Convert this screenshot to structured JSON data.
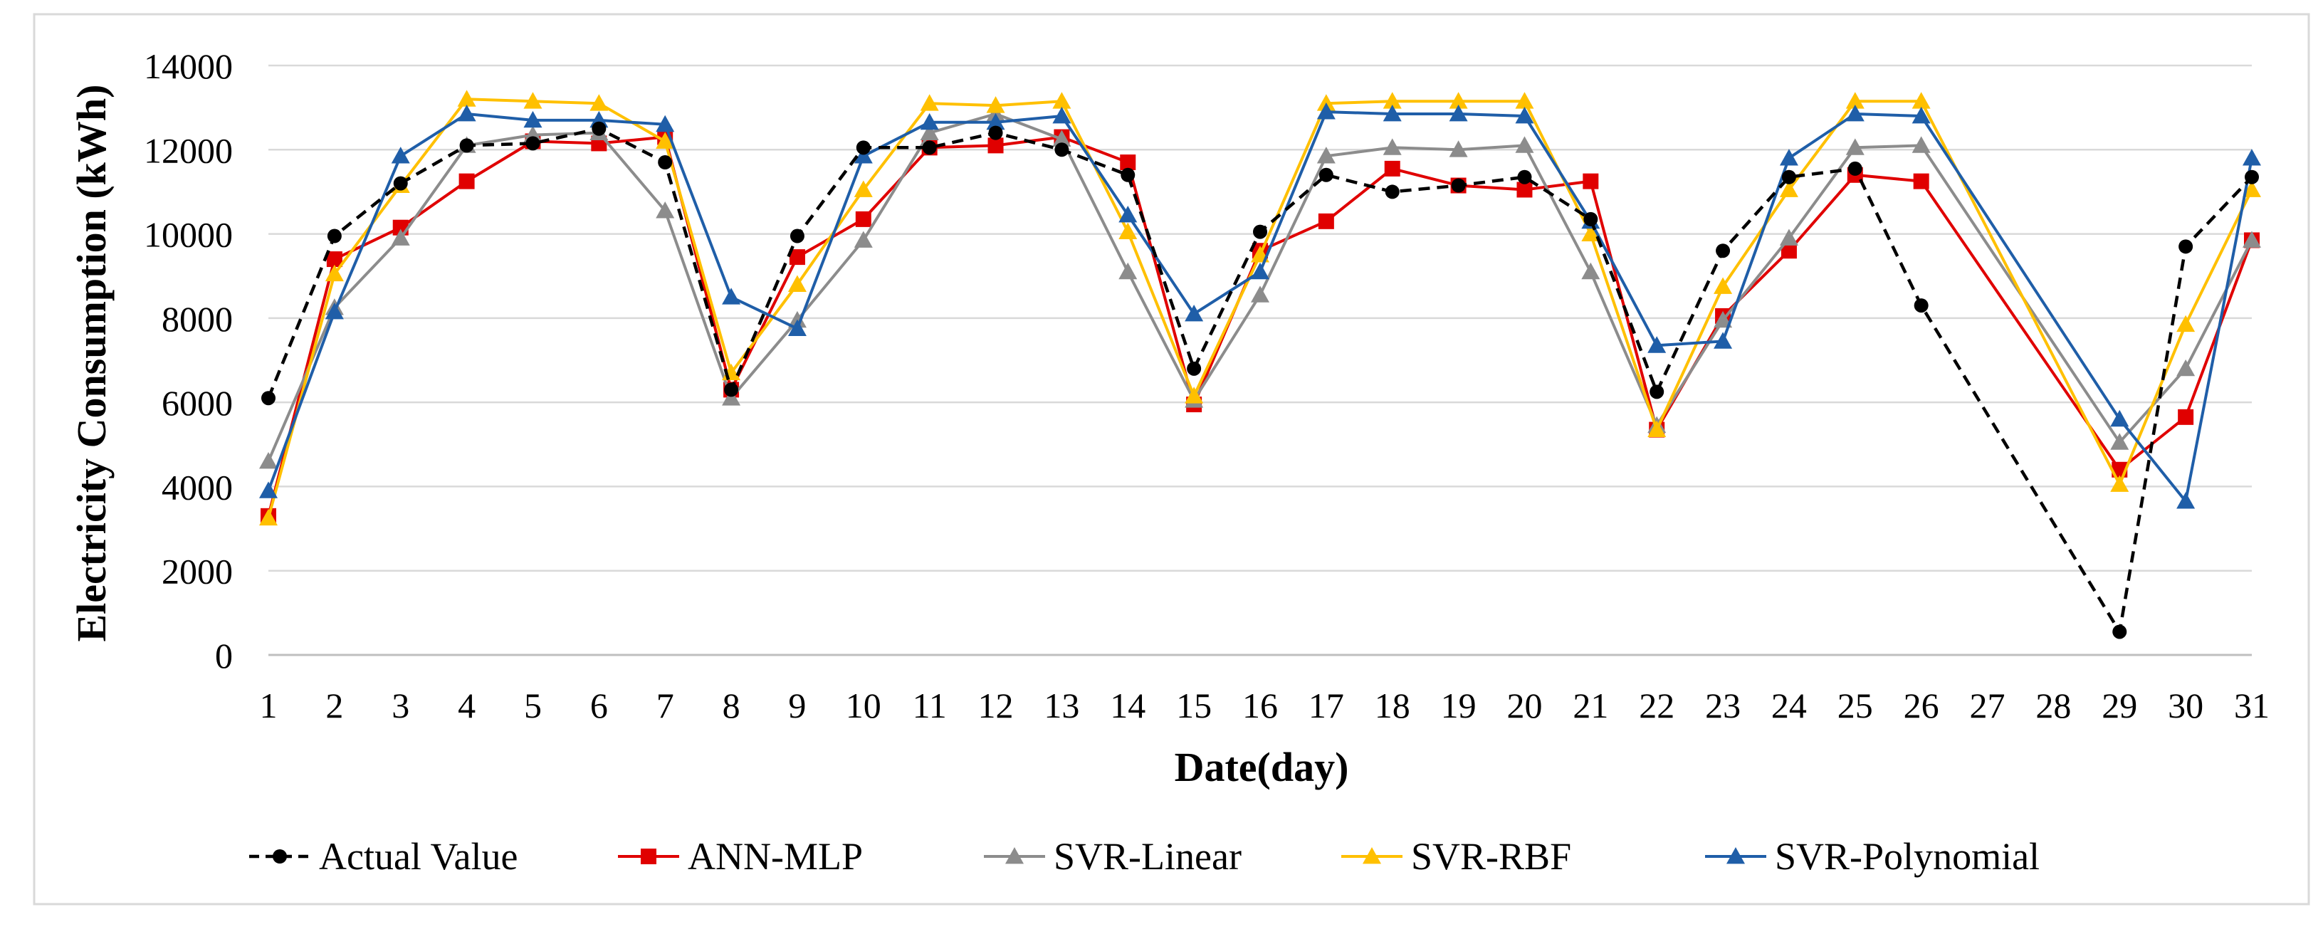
{
  "chart_data": {
    "type": "line",
    "title": "",
    "xlabel": "Date(day)",
    "ylabel": "Electricity Consumption (kWh)",
    "ylim": [
      0,
      14000
    ],
    "yticks": [
      "0",
      "2000",
      "4000",
      "6000",
      "8000",
      "10000",
      "12000",
      "14000"
    ],
    "x": [
      1,
      2,
      3,
      4,
      5,
      6,
      7,
      8,
      9,
      10,
      11,
      12,
      13,
      14,
      15,
      16,
      17,
      18,
      19,
      20,
      21,
      22,
      23,
      24,
      25,
      26,
      27,
      28,
      29,
      30,
      31
    ],
    "xticks": [
      "1",
      "2",
      "3",
      "4",
      "5",
      "6",
      "7",
      "8",
      "9",
      "10",
      "11",
      "12",
      "13",
      "14",
      "15",
      "16",
      "17",
      "18",
      "19",
      "20",
      "21",
      "22",
      "23",
      "24",
      "25",
      "26",
      "27",
      "28",
      "29",
      "30",
      "31"
    ],
    "grid": true,
    "legend_position": "bottom",
    "series": [
      {
        "name": "Actual Value",
        "color": "#000000",
        "marker": "circle",
        "dashed": true,
        "values": [
          6100,
          9950,
          11200,
          12100,
          12150,
          12500,
          11700,
          6300,
          9950,
          12050,
          12050,
          12400,
          12000,
          11400,
          6800,
          10050,
          11400,
          11000,
          11150,
          11350,
          10350,
          6250,
          9600,
          11350,
          11550,
          8300,
          null,
          null,
          550,
          9700,
          11350
        ]
      },
      {
        "name": "ANN-MLP",
        "color": "#e00000",
        "marker": "square",
        "dashed": false,
        "values": [
          3300,
          9400,
          10150,
          11250,
          12200,
          12150,
          12300,
          6300,
          9450,
          10350,
          12050,
          12100,
          12300,
          11700,
          5950,
          9600,
          10300,
          11550,
          11150,
          11050,
          11250,
          5350,
          8050,
          9600,
          11400,
          11250,
          null,
          null,
          4400,
          5650,
          9850
        ]
      },
      {
        "name": "SVR-Linear",
        "color": "#8c8c8c",
        "marker": "triangle",
        "dashed": false,
        "values": [
          4600,
          8250,
          9900,
          12100,
          12350,
          12400,
          10550,
          6100,
          7950,
          9850,
          12400,
          12850,
          12250,
          9100,
          6050,
          8550,
          11850,
          12050,
          12000,
          12100,
          9100,
          5450,
          7950,
          9900,
          12050,
          12100,
          null,
          null,
          5050,
          6800,
          9850
        ]
      },
      {
        "name": "SVR-RBF",
        "color": "#ffc000",
        "marker": "triangle",
        "dashed": false,
        "values": [
          3250,
          9050,
          11150,
          13200,
          13150,
          13100,
          12200,
          6700,
          8800,
          11050,
          13100,
          13050,
          13150,
          10050,
          6150,
          9500,
          13100,
          13150,
          13150,
          13150,
          10000,
          5350,
          8750,
          11050,
          13150,
          13150,
          null,
          null,
          4050,
          7850,
          11050
        ]
      },
      {
        "name": "SVR-Polynomial",
        "color": "#1f5ea8",
        "marker": "triangle",
        "dashed": false,
        "values": [
          3900,
          8150,
          11850,
          12850,
          12700,
          12700,
          12600,
          8500,
          7750,
          11850,
          12650,
          12650,
          12800,
          10450,
          8100,
          9100,
          12900,
          12850,
          12850,
          12800,
          10300,
          7350,
          7450,
          11800,
          12850,
          12800,
          null,
          null,
          5600,
          3650,
          11800
        ]
      }
    ]
  }
}
